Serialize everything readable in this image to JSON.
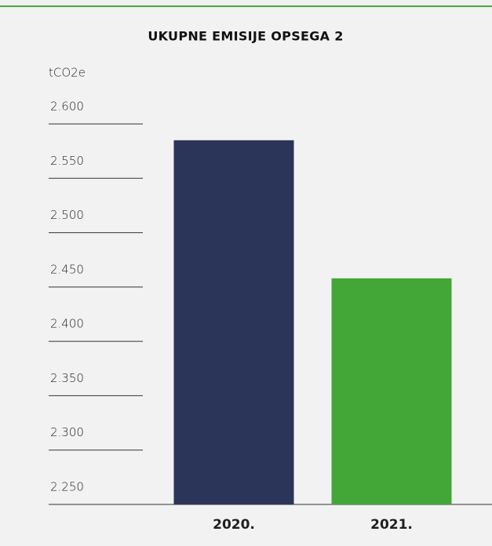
{
  "chart_data": {
    "type": "bar",
    "title": "UKUPNE EMISIJE OPSEGA 2",
    "y_label": "tCO2e",
    "categories": [
      "2020.",
      "2021."
    ],
    "values": [
      2585,
      2458
    ],
    "colors": [
      "#2b3459",
      "#43a737"
    ],
    "ylim": [
      2250,
      2600
    ],
    "yticks": [
      {
        "value": 2250,
        "label": "2.250"
      },
      {
        "value": 2300,
        "label": "2.300"
      },
      {
        "value": 2350,
        "label": "2.350"
      },
      {
        "value": 2400,
        "label": "2.400"
      },
      {
        "value": 2450,
        "label": "2.450"
      },
      {
        "value": 2500,
        "label": "2.500"
      },
      {
        "value": 2550,
        "label": "2.550"
      },
      {
        "value": 2600,
        "label": "2.600"
      }
    ],
    "grid": true
  }
}
